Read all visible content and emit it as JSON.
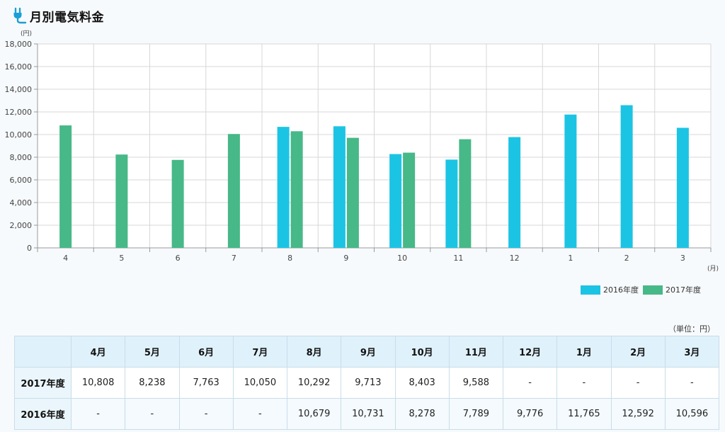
{
  "header": {
    "title": "月別電気料金",
    "icon": "plug-icon"
  },
  "colors": {
    "series_2016": "#1cc4e4",
    "series_2017": "#47b887",
    "grid": "#d7d7d7",
    "header_bg": "#dff1fb"
  },
  "chart_data": {
    "type": "bar",
    "categories": [
      "4",
      "5",
      "6",
      "7",
      "8",
      "9",
      "10",
      "11",
      "12",
      "1",
      "2",
      "3"
    ],
    "series": [
      {
        "name": "2016年度",
        "color": "#1cc4e4",
        "values": [
          null,
          null,
          null,
          null,
          10679,
          10731,
          8278,
          7789,
          9776,
          11765,
          12592,
          10596
        ]
      },
      {
        "name": "2017年度",
        "color": "#47b887",
        "values": [
          10808,
          8238,
          7763,
          10050,
          10292,
          9713,
          8403,
          9588,
          null,
          null,
          null,
          null
        ]
      }
    ],
    "xlabel": "(月)",
    "ylabel": "(円)",
    "ylim": [
      0,
      18000
    ],
    "yticks": [
      "0",
      "2,000",
      "4,000",
      "6,000",
      "8,000",
      "10,000",
      "12,000",
      "14,000",
      "16,000",
      "18,000"
    ],
    "grid": true,
    "legend_position": "bottom-right"
  },
  "legend": {
    "items": [
      {
        "label": "2016年度",
        "color": "#1cc4e4"
      },
      {
        "label": "2017年度",
        "color": "#47b887"
      }
    ]
  },
  "table": {
    "unit_note": "（単位：円）",
    "headers": [
      "4月",
      "5月",
      "6月",
      "7月",
      "8月",
      "9月",
      "10月",
      "11月",
      "12月",
      "1月",
      "2月",
      "3月"
    ],
    "rows": [
      {
        "label": "2017年度",
        "cells": [
          "10,808",
          "8,238",
          "7,763",
          "10,050",
          "10,292",
          "9,713",
          "8,403",
          "9,588",
          "-",
          "-",
          "-",
          "-"
        ]
      },
      {
        "label": "2016年度",
        "cells": [
          "-",
          "-",
          "-",
          "-",
          "10,679",
          "10,731",
          "8,278",
          "7,789",
          "9,776",
          "11,765",
          "12,592",
          "10,596"
        ]
      }
    ]
  }
}
